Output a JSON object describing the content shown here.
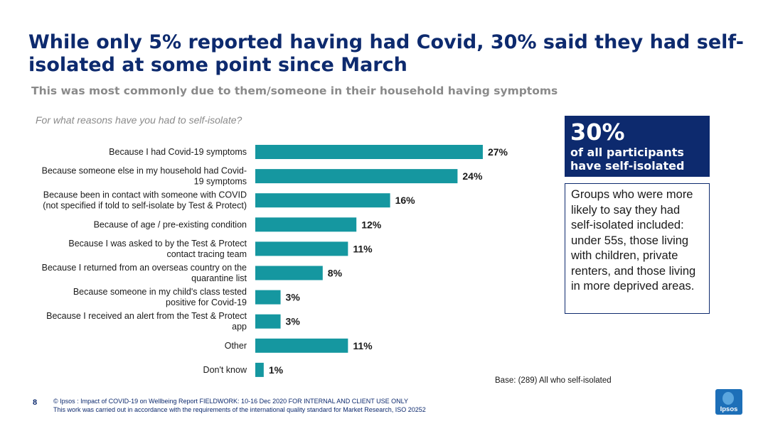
{
  "title": "While only 5% reported having had Covid, 30% said they had self-isolated at some point since March",
  "subtitle": "This was most commonly due to them/someone in their household having symptoms",
  "question": "For what reasons have you had to self-isolate?",
  "stat_box": {
    "big": "30%",
    "text": "of all participants have self-isolated"
  },
  "groups_box": {
    "text": "Groups who were more likely to say they had self-isolated included: under 55s, those living with children, private renters, and those living in more deprived areas."
  },
  "base": "Base: (289) All who self-isolated",
  "page_number": "8",
  "footer": {
    "line1": "© Ipsos : Impact of COVID-19 on Wellbeing Report FIELDWORK: 10-16 Dec 2020 FOR INTERNAL AND CLIENT USE ONLY",
    "line2": "This work was carried out in accordance with the requirements of the international quality standard for Market Research, ISO 20252"
  },
  "logo": {
    "text": "Ipsos"
  },
  "colors": {
    "bar": "#1597a0",
    "navy": "#0d2a6e"
  },
  "chart_data": {
    "type": "bar",
    "orientation": "horizontal",
    "categories": [
      [
        "Because I had Covid-19 symptoms"
      ],
      [
        "Because someone else in my household had Covid-",
        "19 symptoms"
      ],
      [
        "Because been in contact with someone with COVID",
        "(not specified if told to self-isolate by Test & Protect)"
      ],
      [
        "Because of age / pre-existing condition"
      ],
      [
        "Because I was asked to by the Test & Protect",
        "contact tracing team"
      ],
      [
        "Because I returned from an overseas country on the",
        "quarantine list"
      ],
      [
        "Because someone in my child's class tested",
        "positive for Covid-19"
      ],
      [
        "Because I received an alert from the Test & Protect",
        "app"
      ],
      [
        "Other"
      ],
      [
        "Don't know"
      ]
    ],
    "values": [
      27,
      24,
      16,
      12,
      11,
      8,
      3,
      3,
      11,
      1
    ],
    "value_labels": [
      "27%",
      "24%",
      "16%",
      "12%",
      "11%",
      "8%",
      "3%",
      "3%",
      "11%",
      "1%"
    ],
    "unit": "%"
  }
}
